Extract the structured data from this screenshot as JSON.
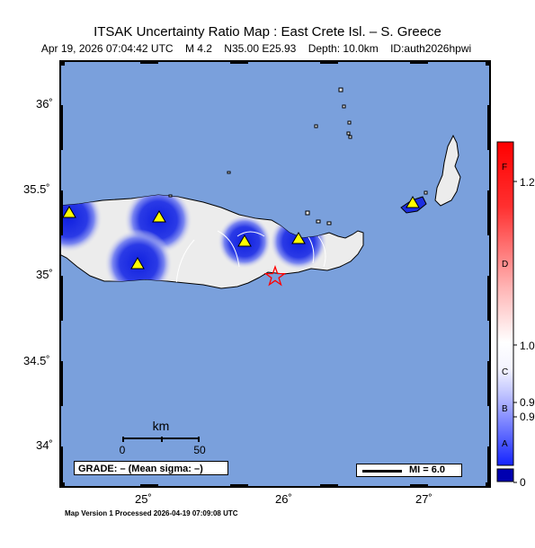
{
  "title": "ITSAK Uncertainty Ratio Map : East Crete Isl. – S. Greece",
  "subtitle": {
    "datetime": "Apr 19, 2026 07:04:42 UTC",
    "magnitude": "M 4.2",
    "location": "N35.00 E25.93",
    "depth": "Depth: 10.0km",
    "event_id": "ID:auth2026hpwi"
  },
  "axes": {
    "lat_ticks": [
      "36˚",
      "35.5˚",
      "35˚",
      "34.5˚",
      "34˚"
    ],
    "lon_ticks": [
      "25˚",
      "26˚",
      "27˚"
    ]
  },
  "scale_bar": {
    "unit": "km",
    "start_label": "0",
    "end_label": "50"
  },
  "grade_box": "GRADE: – (Mean sigma: –)",
  "mi_legend": "MI = 6.0",
  "colorbar": {
    "value_labels": [
      "1.2",
      "1.0",
      "0.9",
      "0.9",
      "0"
    ],
    "grade_letters": [
      "F",
      "D",
      "C",
      "B",
      "A"
    ]
  },
  "footer": "Map Version 1 Processed 2026-04-19 07:09:08 UTC",
  "colors": {
    "sea": "#7aa0dc",
    "land": "#ececec",
    "low_uncertainty": "#1c2ee0",
    "station": "#ffff00",
    "epicenter": "#ff0000"
  },
  "icons": {
    "station": "triangle-station-icon",
    "epicenter": "star-epicenter-icon"
  }
}
